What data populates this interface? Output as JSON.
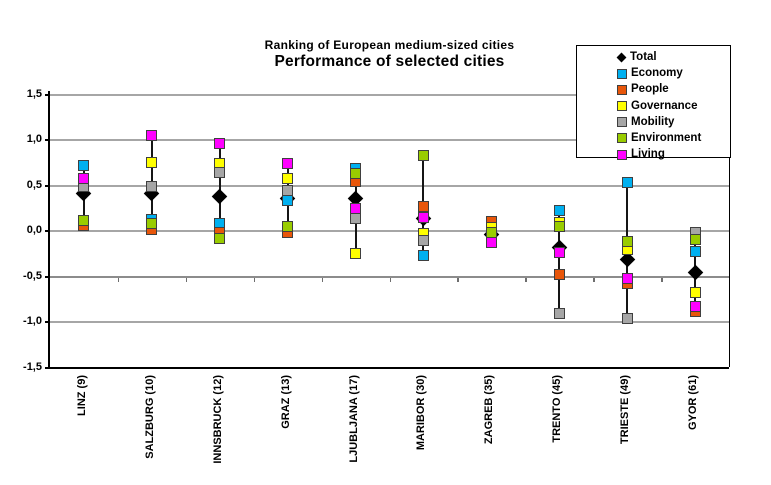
{
  "chart_data": {
    "type": "scatter",
    "title": "Ranking of European medium-sized cities",
    "subtitle": "Performance of selected cities",
    "categories": [
      "LINZ (9)",
      "SALZBURG (10)",
      "INNSBRUCK (12)",
      "GRAZ (13)",
      "LJUBLJANA (17)",
      "MARIBOR (30)",
      "ZAGREB (35)",
      "TRENTO (45)",
      "TRIESTE (49)",
      "GYOR (61)"
    ],
    "ylim": [
      -1.5,
      1.5
    ],
    "ytick_step": 0.5,
    "yticks": [
      1.5,
      1.0,
      0.5,
      0.0,
      -0.5,
      -1.0,
      -1.5
    ],
    "ytick_labels": [
      "1,5",
      "1,0",
      "0,5",
      "0,0",
      "-0,5",
      "-1,0",
      "-1,5"
    ],
    "grid": true,
    "legend_position": "top-right",
    "category_axis_cross": -0.5,
    "series": [
      {
        "name": "Total",
        "marker": "diamond",
        "color": "#000000",
        "values": [
          0.41,
          0.41,
          0.38,
          0.36,
          0.36,
          0.14,
          -0.04,
          -0.18,
          -0.31,
          -0.46
        ]
      },
      {
        "name": "Economy",
        "marker": "square",
        "color": "#00b0f0",
        "values": [
          0.72,
          0.13,
          0.08,
          0.34,
          0.69,
          -0.27,
          -0.02,
          0.23,
          0.53,
          -0.23
        ]
      },
      {
        "name": "People",
        "marker": "square",
        "color": "#e8560a",
        "values": [
          0.06,
          0.02,
          -0.02,
          -0.02,
          0.54,
          0.27,
          0.1,
          -0.48,
          -0.58,
          -0.89
        ]
      },
      {
        "name": "Governance",
        "marker": "square",
        "color": "#ffff00",
        "values": [
          0.49,
          0.75,
          0.74,
          0.58,
          -0.25,
          -0.03,
          0.04,
          0.09,
          -0.2,
          -0.68
        ]
      },
      {
        "name": "Mobility",
        "marker": "square",
        "color": "#a6a6a6",
        "values": [
          0.49,
          0.49,
          0.64,
          0.45,
          0.14,
          -0.1,
          -0.03,
          -0.91,
          -0.96,
          -0.02
        ]
      },
      {
        "name": "Environment",
        "marker": "square",
        "color": "#99cc00",
        "values": [
          0.11,
          0.08,
          -0.08,
          0.05,
          0.63,
          0.83,
          -0.02,
          0.05,
          -0.12,
          -0.09
        ]
      },
      {
        "name": "Living",
        "marker": "square",
        "color": "#ff00ff",
        "values": [
          0.58,
          1.05,
          0.96,
          0.74,
          0.25,
          0.15,
          -0.13,
          -0.24,
          -0.52,
          -0.83
        ]
      }
    ]
  }
}
